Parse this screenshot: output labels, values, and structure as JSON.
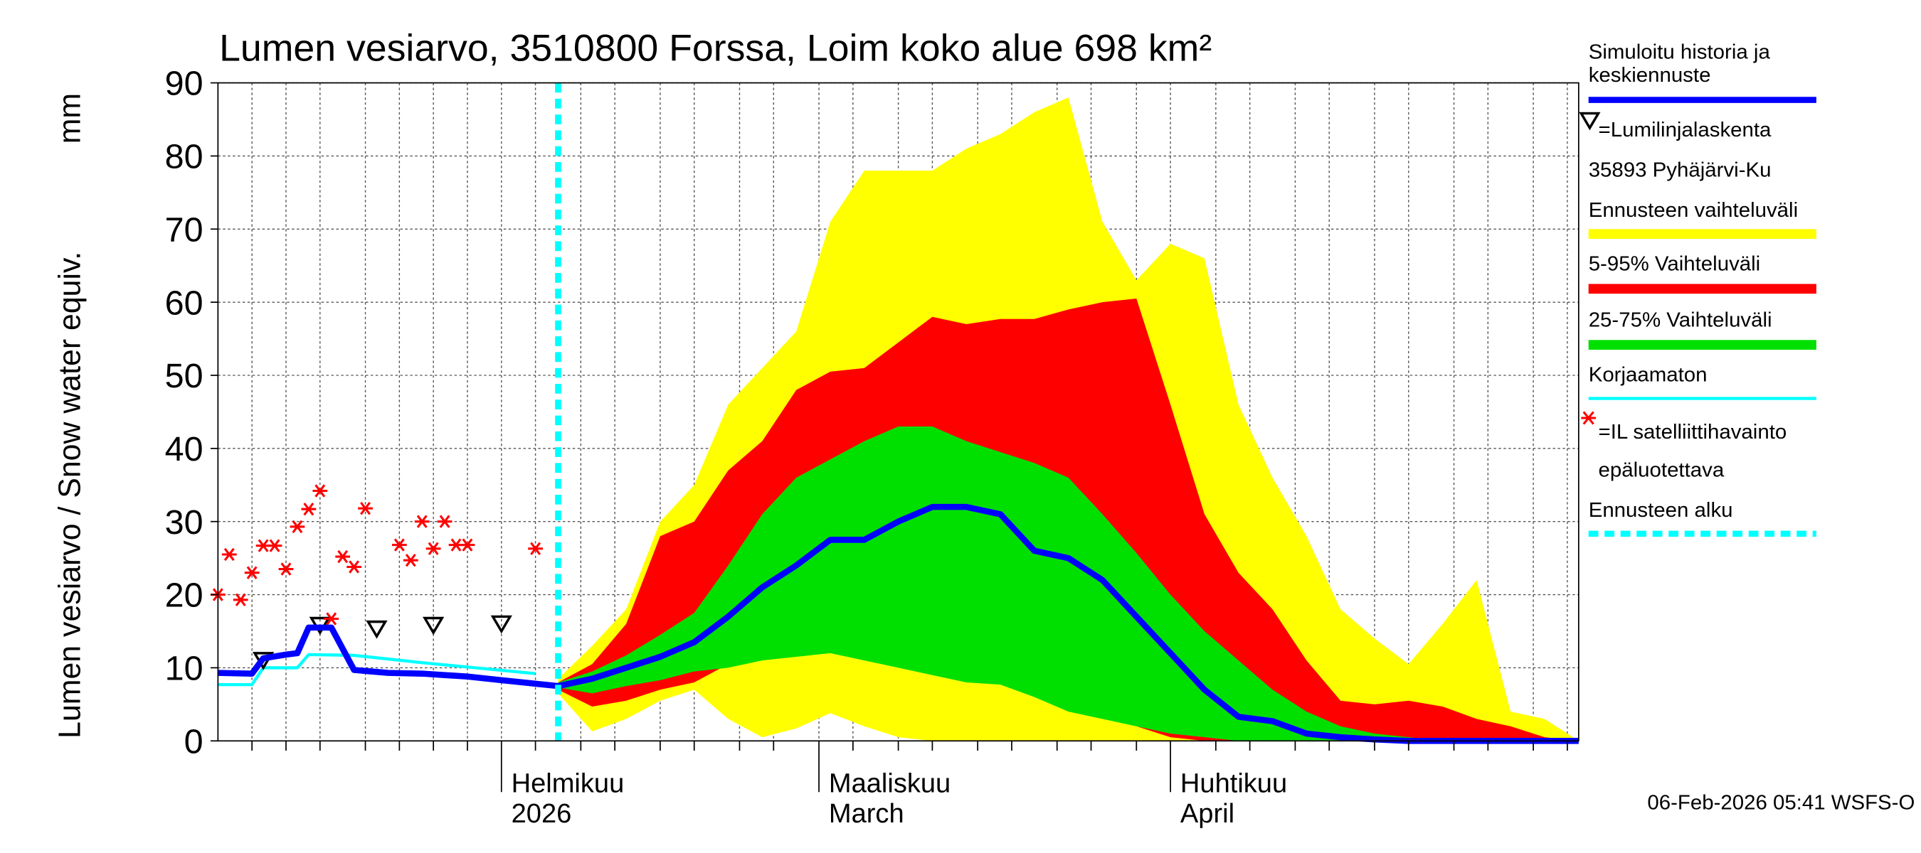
{
  "chart_data": {
    "type": "line",
    "title": "Lumen vesiarvo, 3510800 Forssa, Loim koko alue 698 km²",
    "ylabel": "Lumen vesiarvo / Snow water equiv.",
    "yunit": "mm",
    "footer": "06-Feb-2026 05:41 WSFS-O",
    "xlim": [
      7,
      127
    ],
    "ylim": [
      0,
      90
    ],
    "yticks": [
      0,
      10,
      20,
      30,
      40,
      50,
      60,
      70,
      80,
      90
    ],
    "xticks": [
      {
        "value": 32,
        "label": [
          "Helmikuu",
          "2026"
        ]
      },
      {
        "value": 60,
        "label": [
          "Maaliskuu",
          "March"
        ]
      },
      {
        "value": 91,
        "label": [
          "Huhtikuu",
          "April"
        ]
      }
    ],
    "xminor": [
      10,
      13,
      16,
      20,
      23,
      26,
      29,
      35,
      39,
      42,
      46,
      49,
      53,
      56,
      63,
      67,
      70,
      74,
      77,
      81,
      84,
      88,
      95,
      98,
      102,
      105,
      109,
      112,
      116,
      119,
      123,
      126
    ],
    "grid": true,
    "series": [
      {
        "name": "Simuloitu historia ja keskiennuste",
        "type": "line",
        "color": "#0000ff",
        "width": 5,
        "x": [
          7,
          10,
          11,
          13,
          14,
          15,
          17,
          19,
          22,
          25,
          29,
          32,
          37,
          40,
          43,
          46,
          49,
          52,
          55,
          58,
          61,
          64,
          67,
          70,
          73,
          76,
          79,
          82,
          85,
          88,
          91,
          94,
          97,
          100,
          103,
          106,
          109,
          112,
          115,
          118,
          121,
          124,
          127
        ],
        "values": [
          9.3,
          9.2,
          11.3,
          11.8,
          12,
          15.5,
          15.5,
          9.7,
          9.3,
          9.2,
          8.8,
          8.3,
          7.5,
          8.5,
          10,
          11.5,
          13.5,
          17,
          21,
          24,
          27.5,
          27.5,
          30,
          32,
          32,
          31,
          26,
          25,
          22,
          17,
          12,
          7,
          3.3,
          2.7,
          1,
          0.5,
          0.2,
          0,
          0,
          0,
          0,
          0,
          0
        ]
      },
      {
        "name": "=Lumilinjalaskenta",
        "station": "35893 Pyhäjärvi-Ku",
        "type": "triangle",
        "color": "#000000",
        "x": [
          11,
          16,
          21,
          26,
          32
        ],
        "values": [
          11,
          15.8,
          15.3,
          15.8,
          16
        ]
      },
      {
        "name": "Ennusteen vaihteluväli",
        "type": "band",
        "color": "#ffff00",
        "x": [
          37,
          40,
          43,
          46,
          49,
          52,
          55,
          58,
          61,
          64,
          67,
          70,
          73,
          76,
          79,
          82,
          85,
          88,
          91,
          94,
          97,
          100,
          103,
          106,
          109,
          112,
          115,
          118,
          121,
          124,
          127
        ],
        "upper": [
          8.5,
          13,
          18,
          30,
          35,
          46,
          51,
          56,
          71,
          78,
          78,
          78,
          81,
          83,
          86,
          88,
          71,
          63,
          68,
          66,
          46,
          36,
          28,
          18,
          14,
          10.5,
          16,
          22,
          4,
          3,
          0
        ],
        "lower": [
          6.5,
          1.3,
          3,
          5.5,
          7,
          3,
          0.5,
          1.7,
          3.8,
          2,
          0.5,
          0,
          0,
          0,
          0,
          0,
          0,
          0,
          0,
          0,
          0,
          0,
          0,
          0,
          0,
          0,
          0,
          0,
          0,
          0,
          0
        ]
      },
      {
        "name": "5-95% Vaihteluväli",
        "type": "band",
        "color": "#ff0000",
        "x": [
          37,
          40,
          43,
          46,
          49,
          52,
          55,
          58,
          61,
          64,
          67,
          70,
          73,
          76,
          79,
          82,
          85,
          88,
          91,
          94,
          97,
          100,
          103,
          106,
          109,
          112,
          115,
          118,
          121,
          124,
          127
        ],
        "upper": [
          8,
          10.5,
          16,
          28,
          30,
          37,
          41,
          48,
          50.5,
          51,
          54.5,
          58,
          57,
          57.7,
          57.7,
          59,
          60,
          60.5,
          46,
          31,
          23,
          18,
          11,
          5.5,
          5,
          5.5,
          4.7,
          3,
          2,
          0.5,
          0
        ],
        "lower": [
          7,
          4.7,
          5.5,
          7,
          8,
          10.5,
          13.8,
          16.3,
          19.7,
          20.5,
          22,
          19.7,
          15.5,
          15.5,
          13,
          8,
          4.7,
          2,
          0.5,
          0,
          0,
          0,
          0,
          0,
          0,
          0,
          0,
          0,
          0,
          0,
          0
        ]
      },
      {
        "name": "25-75% Vaihteluväli",
        "type": "band",
        "color": "#00e000",
        "x": [
          37,
          40,
          43,
          46,
          49,
          52,
          55,
          58,
          61,
          64,
          67,
          70,
          73,
          76,
          79,
          82,
          85,
          88,
          91,
          94,
          97,
          100,
          103,
          106,
          109,
          112,
          115,
          118,
          121,
          124,
          127
        ],
        "upper": [
          8,
          9.5,
          11.7,
          14.5,
          17.5,
          24,
          31,
          36,
          38.5,
          41,
          43,
          43,
          41,
          39.5,
          38,
          36,
          31,
          25.7,
          20,
          15,
          11,
          7,
          4,
          2,
          1,
          0.5,
          0,
          0,
          0,
          0,
          0
        ],
        "lower": [
          7.3,
          6.5,
          7.5,
          8.3,
          9.5,
          10,
          11,
          11.5,
          12,
          11,
          10,
          9,
          8,
          7.7,
          6,
          4,
          3,
          2,
          1,
          0.5,
          0,
          0,
          0,
          0,
          0,
          0,
          0,
          0,
          0,
          0,
          0
        ]
      },
      {
        "name": "Korjaamaton",
        "type": "line",
        "color": "#00ffff",
        "width": 2.5,
        "x": [
          7,
          10,
          11,
          14,
          15,
          19,
          25,
          35
        ],
        "values": [
          7.7,
          7.7,
          10,
          10,
          11.8,
          11.7,
          10.7,
          9.2
        ]
      },
      {
        "name": "=IL satelliittihavainto epäluotettava",
        "type": "asterisk",
        "color": "#ff0000",
        "x": [
          7,
          8,
          9,
          10,
          11,
          12,
          13,
          14,
          15,
          16,
          17,
          18,
          19,
          20,
          23,
          24,
          25,
          26,
          27,
          28,
          29,
          35
        ],
        "values": [
          20,
          25.5,
          19.3,
          23,
          26.7,
          26.7,
          23.5,
          29.3,
          31.7,
          34.2,
          16.7,
          25.2,
          23.8,
          31.8,
          26.8,
          24.7,
          30,
          26.3,
          30,
          26.8,
          26.8,
          26.3
        ]
      }
    ],
    "forecast_start": {
      "name": "Ennusteen alku",
      "x": 37,
      "color": "#00ffff"
    }
  }
}
